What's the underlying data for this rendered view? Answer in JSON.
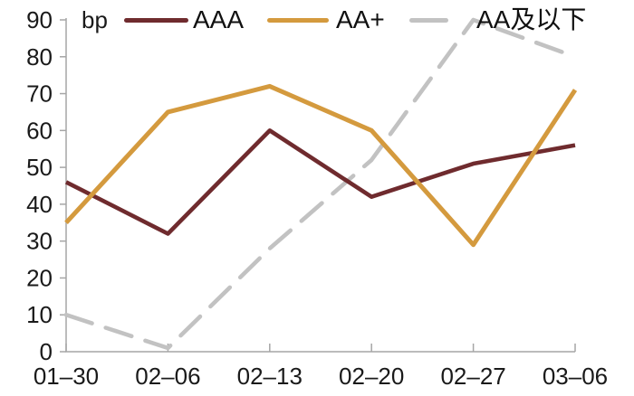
{
  "chart_data": {
    "type": "line",
    "title": "",
    "unit_label": "bp",
    "xlabel": "",
    "ylabel": "bp",
    "categories": [
      "01–30",
      "02–06",
      "02–13",
      "02–20",
      "02–27",
      "03–06"
    ],
    "series": [
      {
        "name": "AAA",
        "values": [
          46,
          32,
          60,
          42,
          51,
          56
        ],
        "color": "#6F2B2E",
        "line_style": "solid"
      },
      {
        "name": "AA+",
        "values": [
          35,
          65,
          72,
          60,
          29,
          71
        ],
        "color": "#D49A3E",
        "line_style": "solid"
      },
      {
        "name": "AA及以下",
        "values": [
          10,
          1,
          28,
          52,
          90,
          80
        ],
        "color": "#C2C2C2",
        "line_style": "dashed"
      }
    ],
    "ylim": [
      0,
      90
    ],
    "yticks": [
      0,
      10,
      20,
      30,
      40,
      50,
      60,
      70,
      80,
      90
    ],
    "grid": false,
    "legend_position": "top",
    "axis_color": "#A6A6A6",
    "text_color": "#1A1A1A"
  }
}
